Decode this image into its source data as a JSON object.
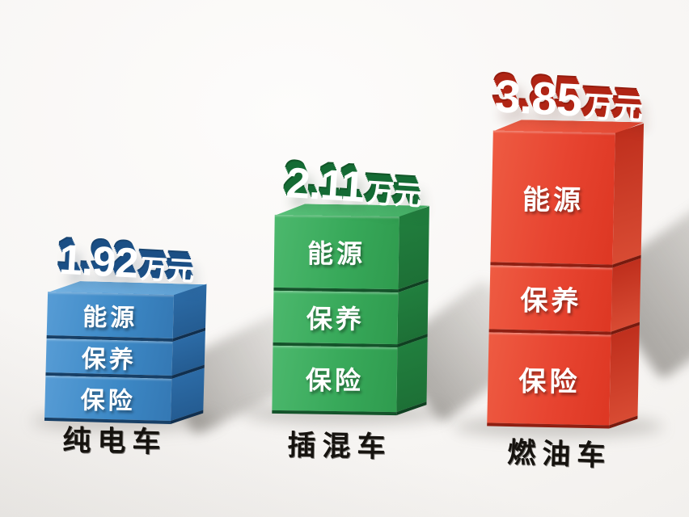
{
  "chart_data": {
    "type": "bar",
    "subtype": "3d-stacked-comparison",
    "title": "",
    "unit": "万元",
    "categories": [
      "纯电车",
      "插混车",
      "燃油车"
    ],
    "totals": [
      1.92,
      2.11,
      3.85
    ],
    "total_labels": [
      "1.92万元",
      "2.11万元",
      "3.85万元"
    ],
    "stack_segments_top_to_bottom": [
      "能源",
      "保养",
      "保险"
    ],
    "legend_position": "none",
    "axes_visible": false,
    "grid": false,
    "bar_colors": {
      "纯电车": "#3d89c6",
      "插混车": "#38a95a",
      "燃油车": "#e74430"
    },
    "background_color": "#f6f4f1",
    "value_text_color": "#ffffff",
    "category_text_color": "#16130f"
  },
  "bars": [
    {
      "id": "pure-ev",
      "category": "纯电车",
      "value": "1.92",
      "unit": "万元",
      "segments": [
        {
          "label": "能源"
        },
        {
          "label": "保养"
        },
        {
          "label": "保险"
        }
      ],
      "colors": {
        "front": "#3d89c6",
        "side": "#2a6aa4",
        "top": "#69aadc",
        "extrude": "#1b4f85"
      }
    },
    {
      "id": "phev",
      "category": "插混车",
      "value": "2.11",
      "unit": "万元",
      "segments": [
        {
          "label": "能源"
        },
        {
          "label": "保养"
        },
        {
          "label": "保险"
        }
      ],
      "colors": {
        "front": "#38a95a",
        "side": "#217f3e",
        "top": "#4fba72",
        "extrude": "#156b34"
      }
    },
    {
      "id": "ice",
      "category": "燃油车",
      "value": "3.85",
      "unit": "万元",
      "segments": [
        {
          "label": "能源"
        },
        {
          "label": "保养"
        },
        {
          "label": "保险"
        }
      ],
      "colors": {
        "front": "#e74430",
        "side": "#bf2f1d",
        "top": "#ed5b44",
        "extrude": "#b02515"
      }
    }
  ]
}
